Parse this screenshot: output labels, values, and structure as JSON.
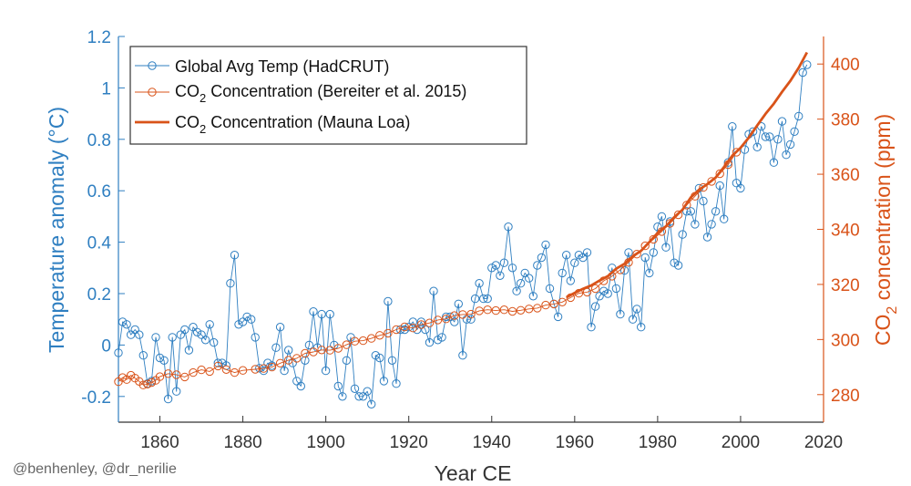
{
  "credit": "@benhenley, @dr_nerilie",
  "chart_data": {
    "type": "line",
    "xlabel": "Year CE",
    "ylabel_left": "Temperature anomaly (°C)",
    "ylabel_right_parts": {
      "pre": "CO",
      "sub": "2",
      "post": " concentration (ppm)"
    },
    "xlim": [
      1850,
      2020
    ],
    "ylim_left": [
      -0.3,
      1.2
    ],
    "ylim_right": [
      270,
      410
    ],
    "x_ticks": [
      "1860",
      "1880",
      "1900",
      "1920",
      "1940",
      "1960",
      "1980",
      "2000",
      "2020"
    ],
    "y_ticks_left": [
      "-0.2",
      "0",
      "0.2",
      "0.4",
      "0.6",
      "0.8",
      "1",
      "1.2"
    ],
    "y_ticks_right": [
      "280",
      "300",
      "320",
      "340",
      "360",
      "380",
      "400"
    ],
    "grid": false,
    "legend_position": "top-left",
    "colors": {
      "temp": "#2f7fc1",
      "co2": "#d95319",
      "axis_left": "#2f7fc1",
      "axis_right": "#d95319"
    },
    "legend": [
      {
        "pre": "Global Avg Temp (HadCRUT)",
        "sub": "",
        "post": ""
      },
      {
        "pre": "CO",
        "sub": "2",
        "post": " Concentration (Bereiter et al. 2015)"
      },
      {
        "pre": "CO",
        "sub": "2",
        "post": " Concentration (Mauna Loa)"
      }
    ],
    "series": [
      {
        "key": "hadcrut",
        "axis": "left",
        "x": [
          1850,
          1851,
          1852,
          1853,
          1854,
          1855,
          1856,
          1857,
          1858,
          1859,
          1860,
          1861,
          1862,
          1863,
          1864,
          1865,
          1866,
          1867,
          1868,
          1869,
          1870,
          1871,
          1872,
          1873,
          1874,
          1875,
          1876,
          1877,
          1878,
          1879,
          1880,
          1881,
          1882,
          1883,
          1884,
          1885,
          1886,
          1887,
          1888,
          1889,
          1890,
          1891,
          1892,
          1893,
          1894,
          1895,
          1896,
          1897,
          1898,
          1899,
          1900,
          1901,
          1902,
          1903,
          1904,
          1905,
          1906,
          1907,
          1908,
          1909,
          1910,
          1911,
          1912,
          1913,
          1914,
          1915,
          1916,
          1917,
          1918,
          1919,
          1920,
          1921,
          1922,
          1923,
          1924,
          1925,
          1926,
          1927,
          1928,
          1929,
          1930,
          1931,
          1932,
          1933,
          1934,
          1935,
          1936,
          1937,
          1938,
          1939,
          1940,
          1941,
          1942,
          1943,
          1944,
          1945,
          1946,
          1947,
          1948,
          1949,
          1950,
          1951,
          1952,
          1953,
          1954,
          1955,
          1956,
          1957,
          1958,
          1959,
          1960,
          1961,
          1962,
          1963,
          1964,
          1965,
          1966,
          1967,
          1968,
          1969,
          1970,
          1971,
          1972,
          1973,
          1974,
          1975,
          1976,
          1977,
          1978,
          1979,
          1980,
          1981,
          1982,
          1983,
          1984,
          1985,
          1986,
          1987,
          1988,
          1989,
          1990,
          1991,
          1992,
          1993,
          1994,
          1995,
          1996,
          1997,
          1998,
          1999,
          2000,
          2001,
          2002,
          2003,
          2004,
          2005,
          2006,
          2007,
          2008,
          2009,
          2010,
          2011,
          2012,
          2013,
          2014,
          2015,
          2016
        ],
        "y": [
          -0.03,
          0.09,
          0.08,
          0.04,
          0.06,
          0.04,
          -0.04,
          -0.15,
          -0.14,
          0.03,
          -0.05,
          -0.06,
          -0.21,
          0.03,
          -0.18,
          0.04,
          0.06,
          -0.02,
          0.07,
          0.05,
          0.04,
          0.02,
          0.08,
          0.01,
          -0.07,
          -0.07,
          -0.08,
          0.24,
          0.35,
          0.08,
          0.09,
          0.11,
          0.1,
          0.03,
          -0.09,
          -0.1,
          -0.07,
          -0.08,
          -0.01,
          0.07,
          -0.1,
          -0.02,
          -0.07,
          -0.14,
          -0.16,
          -0.06,
          0.0,
          0.13,
          -0.01,
          0.12,
          -0.1,
          0.12,
          0.0,
          -0.16,
          -0.2,
          -0.06,
          0.03,
          -0.17,
          -0.2,
          -0.2,
          -0.18,
          -0.23,
          -0.04,
          -0.05,
          -0.14,
          0.17,
          -0.06,
          -0.15,
          0.06,
          0.06,
          0.07,
          0.09,
          0.06,
          0.09,
          0.06,
          0.01,
          0.21,
          0.02,
          0.03,
          0.11,
          0.11,
          0.09,
          0.16,
          -0.04,
          0.1,
          0.1,
          0.18,
          0.24,
          0.18,
          0.18,
          0.3,
          0.31,
          0.27,
          0.32,
          0.46,
          0.3,
          0.21,
          0.24,
          0.28,
          0.26,
          0.19,
          0.31,
          0.34,
          0.39,
          0.22,
          0.16,
          0.11,
          0.28,
          0.35,
          0.25,
          0.32,
          0.35,
          0.34,
          0.36,
          0.07,
          0.15,
          0.19,
          0.21,
          0.2,
          0.3,
          0.22,
          0.12,
          0.29,
          0.36,
          0.1,
          0.14,
          0.07,
          0.34,
          0.28,
          0.36,
          0.46,
          0.5,
          0.38,
          0.48,
          0.32,
          0.31,
          0.43,
          0.52,
          0.52,
          0.47,
          0.61,
          0.56,
          0.42,
          0.47,
          0.52,
          0.62,
          0.49,
          0.71,
          0.85,
          0.63,
          0.61,
          0.76,
          0.82,
          0.83,
          0.77,
          0.85,
          0.81,
          0.81,
          0.71,
          0.8,
          0.87,
          0.74,
          0.78,
          0.83,
          0.89,
          1.06,
          1.09
        ]
      },
      {
        "key": "bereiter",
        "axis": "right",
        "x": [
          1850,
          1851,
          1852,
          1853,
          1854,
          1855,
          1856,
          1857,
          1858,
          1859,
          1860,
          1862,
          1864,
          1866,
          1868,
          1870,
          1872,
          1874,
          1876,
          1878,
          1880,
          1883,
          1885,
          1887,
          1889,
          1891,
          1893,
          1895,
          1897,
          1899,
          1901,
          1903,
          1905,
          1907,
          1909,
          1911,
          1913,
          1915,
          1917,
          1919,
          1921,
          1923,
          1925,
          1927,
          1929,
          1931,
          1933,
          1935,
          1937,
          1939,
          1941,
          1943,
          1945,
          1947,
          1949,
          1951,
          1953,
          1955,
          1957,
          1959,
          1961,
          1963,
          1965,
          1967,
          1969,
          1971,
          1973,
          1975,
          1977,
          1979,
          1981,
          1983,
          1985,
          1987,
          1989,
          1991,
          1993,
          1995,
          1997,
          1999
        ],
        "y": [
          284.7,
          286.2,
          285.5,
          287.0,
          286.0,
          284.8,
          283.5,
          283.8,
          284.4,
          285.2,
          286.5,
          287.6,
          287.2,
          286.4,
          288.0,
          289.0,
          288.4,
          290.4,
          289.1,
          288.0,
          288.8,
          289.2,
          289.5,
          290.0,
          291.4,
          292.5,
          293.2,
          295.0,
          295.5,
          296.2,
          296.1,
          296.8,
          298.1,
          299.4,
          299.6,
          300.4,
          301.5,
          302.3,
          303.6,
          304.6,
          304.2,
          305.4,
          306.0,
          307.1,
          307.5,
          308.7,
          309.1,
          309.2,
          310.4,
          310.8,
          310.5,
          310.8,
          310.2,
          310.6,
          311.1,
          311.4,
          312.5,
          312.9,
          313.6,
          315.2,
          316.8,
          317.2,
          318.5,
          321.3,
          323.0,
          325.3,
          328.0,
          331.0,
          334.0,
          336.4,
          339.2,
          342.2,
          345.3,
          348.8,
          352.0,
          355.2,
          357.4,
          360.2,
          363.5,
          368.0
        ]
      },
      {
        "key": "maunaloa",
        "axis": "right",
        "x": [
          1958,
          1960,
          1962,
          1964,
          1966,
          1968,
          1970,
          1972,
          1974,
          1976,
          1978,
          1980,
          1982,
          1984,
          1986,
          1988,
          1990,
          1992,
          1994,
          1996,
          1998,
          2000,
          2002,
          2004,
          2006,
          2008,
          2010,
          2012,
          2014,
          2016
        ],
        "y": [
          315.3,
          316.9,
          318.4,
          319.6,
          321.4,
          323.0,
          325.7,
          327.5,
          330.2,
          332.2,
          335.4,
          338.7,
          341.1,
          344.4,
          347.1,
          351.6,
          354.4,
          356.4,
          358.8,
          362.6,
          366.7,
          369.6,
          373.3,
          377.7,
          381.9,
          385.6,
          389.9,
          393.9,
          398.6,
          404.2
        ]
      }
    ]
  }
}
